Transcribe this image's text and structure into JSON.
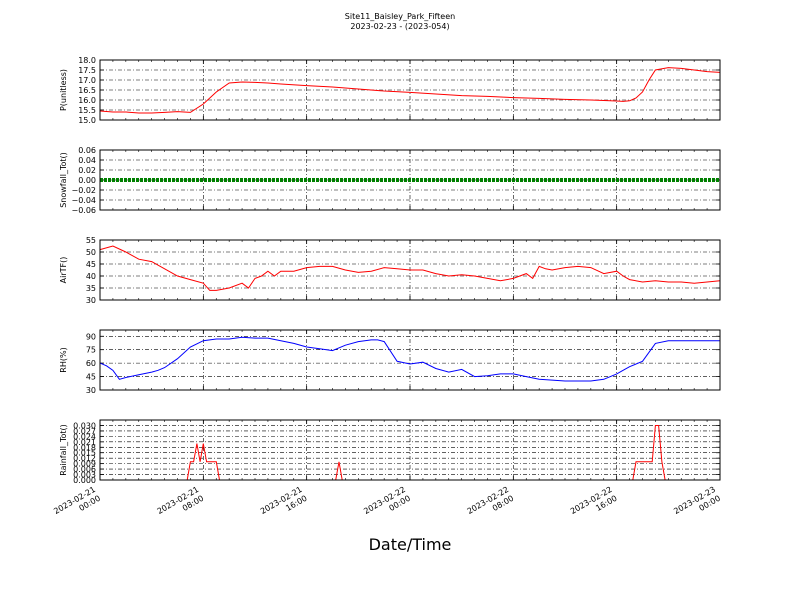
{
  "figure": {
    "title_line1": "Site11_Baisley_Park_Fifteen",
    "title_line2": "2023-02-23 - (2023-054)",
    "xlabel": "Date/Time"
  },
  "chart_data": [
    {
      "type": "line",
      "ylabel": "P(unitless)",
      "color": "#ff0000",
      "ylim": [
        15.0,
        18.0
      ],
      "yticks": [
        "15.0",
        "15.5",
        "16.0",
        "16.5",
        "17.0",
        "17.5",
        "18.0"
      ],
      "x_hours": [
        0,
        1,
        2,
        3,
        4,
        5,
        6,
        7,
        8,
        9,
        10,
        11,
        12,
        13,
        14,
        16,
        18,
        20,
        22,
        24,
        26,
        28,
        30,
        32,
        34,
        36,
        38,
        40,
        40.5,
        41,
        41.5,
        42,
        42.5,
        43,
        44,
        45,
        46,
        47,
        48
      ],
      "values": [
        15.45,
        15.4,
        15.4,
        15.35,
        15.35,
        15.38,
        15.42,
        15.38,
        15.8,
        16.4,
        16.85,
        16.9,
        16.88,
        16.85,
        16.8,
        16.72,
        16.65,
        16.55,
        16.45,
        16.38,
        16.3,
        16.22,
        16.18,
        16.12,
        16.08,
        16.03,
        16.0,
        15.95,
        15.93,
        15.96,
        16.1,
        16.4,
        17.0,
        17.5,
        17.62,
        17.58,
        17.5,
        17.42,
        17.38
      ]
    },
    {
      "type": "line",
      "ylabel": "Snowfall_Tot()",
      "color": "#008000",
      "ylim": [
        -0.06,
        0.06
      ],
      "yticks": [
        "−0.06",
        "−0.04",
        "−0.02",
        "0.00",
        "0.02",
        "0.04",
        "0.06"
      ],
      "x_hours": [
        0,
        48
      ],
      "values": [
        0.0,
        0.0
      ]
    },
    {
      "type": "line",
      "ylabel": "AirTF()",
      "color": "#ff0000",
      "ylim": [
        30,
        55
      ],
      "yticks": [
        "30",
        "35",
        "40",
        "45",
        "50",
        "55"
      ],
      "x_hours": [
        0,
        1,
        2,
        3,
        4,
        5,
        6,
        7,
        8,
        8.5,
        9,
        10,
        11,
        11.5,
        12,
        12.5,
        13,
        13.5,
        14,
        15,
        16,
        17,
        18,
        19,
        20,
        21,
        22,
        23,
        24,
        25,
        26,
        27,
        28,
        29,
        30,
        31,
        32,
        33,
        33.5,
        34,
        34.5,
        35,
        36,
        37,
        38,
        39,
        40,
        40.5,
        41,
        42,
        43,
        44,
        45,
        46,
        47,
        48
      ],
      "values": [
        51,
        52.5,
        50,
        47,
        46,
        43,
        40,
        38.5,
        37,
        34,
        34,
        35,
        37,
        35,
        39,
        40,
        42,
        40,
        42,
        42,
        43.5,
        44,
        44,
        42.5,
        41.5,
        42,
        43.5,
        43,
        42.5,
        42.5,
        41,
        40,
        40.5,
        40,
        39,
        38,
        39,
        41,
        39,
        44,
        43,
        42.5,
        43.5,
        44,
        43.5,
        41,
        42,
        40,
        38.5,
        37.5,
        38,
        37.5,
        37.5,
        37,
        37.5,
        38
      ]
    },
    {
      "type": "line",
      "ylabel": "RH(%)",
      "color": "#0000ff",
      "ylim": [
        30,
        97
      ],
      "yticks": [
        "30",
        "45",
        "60",
        "75",
        "90"
      ],
      "x_hours": [
        0,
        0.5,
        1,
        1.5,
        2,
        3,
        4,
        4.5,
        5,
        6,
        7,
        8,
        9,
        10,
        11,
        12,
        13,
        14,
        15,
        16,
        17,
        18,
        19,
        20,
        21,
        21.5,
        22,
        23,
        24,
        25,
        26,
        27,
        28,
        29,
        30,
        31,
        32,
        33,
        34,
        35,
        36,
        37,
        38,
        39,
        40,
        40.5,
        41,
        42,
        43,
        44,
        45,
        46,
        47,
        48
      ],
      "values": [
        60,
        57,
        52,
        42,
        44,
        47,
        50,
        52,
        55,
        65,
        78,
        85,
        87,
        87,
        89,
        88,
        88,
        85,
        82,
        78,
        76,
        74,
        80,
        84,
        86,
        86,
        84,
        62,
        59,
        61,
        54,
        50,
        53,
        45,
        46,
        48,
        48,
        45,
        42,
        41,
        40,
        40,
        40,
        42,
        48,
        52,
        56,
        62,
        82,
        85,
        85,
        85,
        85,
        85
      ]
    },
    {
      "type": "line",
      "ylabel": "Rainfall_Tot()",
      "color": "#ff0000",
      "ylim": [
        0.0,
        0.033
      ],
      "yticks": [
        "0.000",
        "0.003",
        "0.006",
        "0.009",
        "0.012",
        "0.015",
        "0.018",
        "0.021",
        "0.024",
        "0.027",
        "0.030"
      ],
      "x_hours": [
        0,
        6.75,
        7,
        7.25,
        7.5,
        7.75,
        8,
        8.25,
        8.5,
        8.75,
        9,
        9.25,
        9.5,
        18.25,
        18.5,
        18.75,
        41.25,
        41.5,
        42.75,
        43,
        43.25,
        43.5,
        43.75,
        48
      ],
      "values": [
        0,
        0,
        0.01,
        0.01,
        0.02,
        0.01,
        0.02,
        0.01,
        0.01,
        0.01,
        0.01,
        0.0,
        0,
        0,
        0.01,
        0,
        0,
        0.01,
        0.01,
        0.03,
        0.03,
        0.01,
        0,
        0
      ]
    }
  ],
  "x_axis": {
    "range_hours": [
      0,
      48
    ],
    "ticks": [
      {
        "hour": 0,
        "line1": "2023-02-21",
        "line2": "00:00"
      },
      {
        "hour": 8,
        "line1": "2023-02-21",
        "line2": "08:00"
      },
      {
        "hour": 16,
        "line1": "2023-02-21",
        "line2": "16:00"
      },
      {
        "hour": 24,
        "line1": "2023-02-22",
        "line2": "00:00"
      },
      {
        "hour": 32,
        "line1": "2023-02-22",
        "line2": "08:00"
      },
      {
        "hour": 40,
        "line1": "2023-02-22",
        "line2": "16:00"
      },
      {
        "hour": 48,
        "line1": "2023-02-23",
        "line2": "00:00"
      }
    ]
  }
}
